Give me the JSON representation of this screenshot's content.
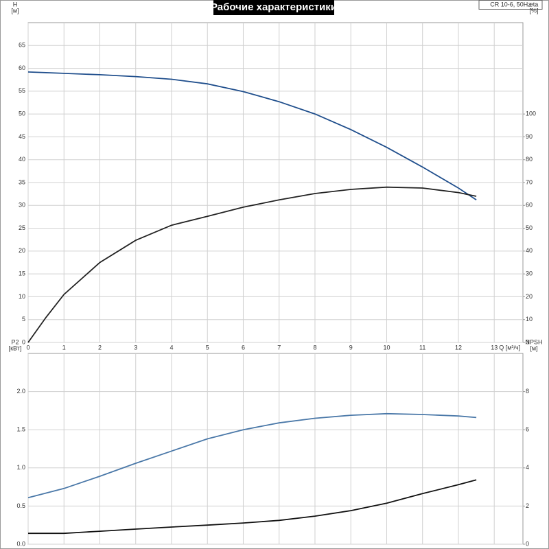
{
  "chart_data": [
    {
      "type": "line",
      "title": "Рабочие характеристики",
      "annotation": "CR 10-6, 50Hz",
      "ylabel": "H",
      "yunit": "[м]",
      "y2label": "eta",
      "y2unit": "[%]",
      "xlabel": "Q [м³/ч]",
      "xlim": [
        0,
        13.8
      ],
      "xticks": [
        0,
        1,
        2,
        3,
        4,
        5,
        6,
        7,
        8,
        9,
        10,
        11,
        12,
        13
      ],
      "ylim": [
        0,
        70
      ],
      "yticks": [
        0,
        5,
        10,
        15,
        20,
        25,
        30,
        35,
        40,
        45,
        50,
        55,
        60,
        65
      ],
      "y2lim": [
        0,
        140
      ],
      "y2ticks": [
        0,
        10,
        20,
        30,
        40,
        50,
        60,
        70,
        80,
        90,
        100
      ],
      "grid": true,
      "x": [
        0,
        0.5,
        1,
        2,
        3,
        4,
        5,
        6,
        7,
        8,
        9,
        10,
        11,
        12,
        12.5
      ],
      "series": [
        {
          "name": "H",
          "color": "#1f4e8c",
          "values": [
            59.2,
            59.05,
            58.9,
            58.6,
            58.2,
            57.6,
            56.6,
            54.9,
            52.7,
            50.0,
            46.6,
            42.7,
            38.4,
            33.8,
            31.2
          ]
        },
        {
          "name": "eta",
          "color": "#222222",
          "axis": "y2",
          "values": [
            0,
            11,
            21,
            35,
            44.7,
            51.3,
            55.2,
            59.2,
            62.4,
            65.2,
            67,
            68,
            67.6,
            65.6,
            64
          ]
        }
      ]
    },
    {
      "type": "line",
      "ylabel": "P2",
      "yunit": "[кВт]",
      "y2label": "NPSH",
      "y2unit": "[м]",
      "xlim": [
        0,
        13.8
      ],
      "xticks": [
        0,
        1,
        2,
        3,
        4,
        5,
        6,
        7,
        8,
        9,
        10,
        11,
        12,
        13
      ],
      "ylim": [
        0,
        2.5
      ],
      "yticks": [
        {
          "value": 0,
          "label": "0.0"
        },
        0.5,
        {
          "value": 1,
          "label": "1.0"
        },
        1.5,
        {
          "value": 2,
          "label": "2.0"
        }
      ],
      "y2lim": [
        0,
        10
      ],
      "y2ticks": [
        0,
        2,
        4,
        6,
        8
      ],
      "grid": true,
      "x": [
        0,
        1,
        2,
        3,
        4,
        5,
        6,
        7,
        8,
        9,
        10,
        11,
        12,
        12.5
      ],
      "series": [
        {
          "name": "P2",
          "color": "#4a78a8",
          "values": [
            0.61,
            0.73,
            0.89,
            1.06,
            1.22,
            1.38,
            1.5,
            1.59,
            1.65,
            1.69,
            1.71,
            1.7,
            1.68,
            1.66
          ]
        },
        {
          "name": "NPSH",
          "color": "#111111",
          "axis": "y2",
          "values": [
            0.57,
            0.57,
            0.68,
            0.79,
            0.9,
            1.0,
            1.11,
            1.25,
            1.47,
            1.76,
            2.15,
            2.65,
            3.12,
            3.37
          ]
        }
      ]
    }
  ]
}
